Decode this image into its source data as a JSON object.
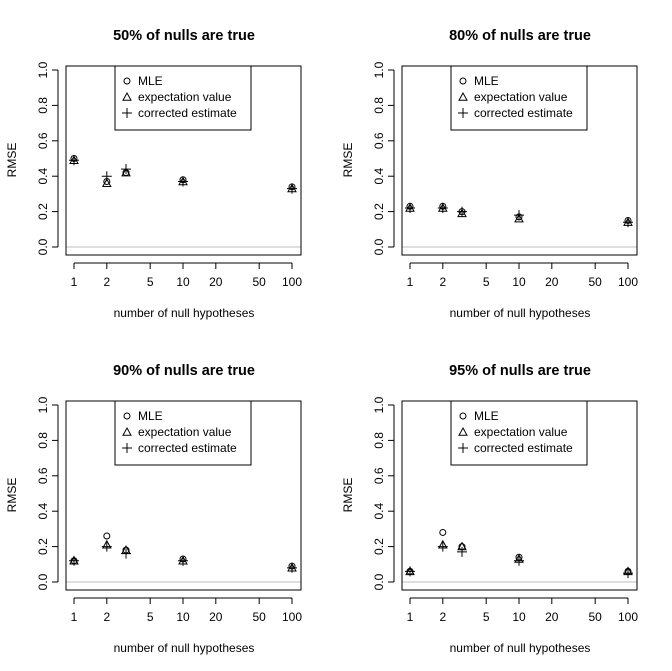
{
  "chart_data": [
    {
      "type": "scatter",
      "title": "50% of nulls are true",
      "xlabel": "number of null hypotheses",
      "ylabel": "RMSE",
      "xscale": "log",
      "xticks": [
        1,
        2,
        5,
        10,
        20,
        50,
        100
      ],
      "yticks": [
        0.0,
        0.2,
        0.4,
        0.6,
        0.8,
        1.0
      ],
      "ylim": [
        0,
        1
      ],
      "reference_line_y": 0,
      "legend": {
        "position": "top-center",
        "entries": [
          "MLE",
          "expectation value",
          "corrected estimate"
        ]
      },
      "series": [
        {
          "name": "MLE",
          "marker": "circle",
          "x": [
            1,
            2,
            3,
            10,
            100
          ],
          "y": [
            0.5,
            0.37,
            0.42,
            0.38,
            0.34
          ]
        },
        {
          "name": "expectation value",
          "marker": "triangle",
          "x": [
            1,
            2,
            3,
            10,
            100
          ],
          "y": [
            0.49,
            0.36,
            0.42,
            0.37,
            0.33
          ]
        },
        {
          "name": "corrected estimate",
          "marker": "plus",
          "x": [
            1,
            2,
            3,
            10,
            100
          ],
          "y": [
            0.49,
            0.4,
            0.44,
            0.37,
            0.33
          ]
        }
      ]
    },
    {
      "type": "scatter",
      "title": "80% of nulls are true",
      "xlabel": "number of null hypotheses",
      "ylabel": "RMSE",
      "xscale": "log",
      "xticks": [
        1,
        2,
        5,
        10,
        20,
        50,
        100
      ],
      "yticks": [
        0.0,
        0.2,
        0.4,
        0.6,
        0.8,
        1.0
      ],
      "ylim": [
        0,
        1
      ],
      "reference_line_y": 0,
      "legend": {
        "position": "top-center",
        "entries": [
          "MLE",
          "expectation value",
          "corrected estimate"
        ]
      },
      "series": [
        {
          "name": "MLE",
          "marker": "circle",
          "x": [
            1,
            2,
            3,
            10,
            100
          ],
          "y": [
            0.23,
            0.23,
            0.2,
            0.17,
            0.15
          ]
        },
        {
          "name": "expectation value",
          "marker": "triangle",
          "x": [
            1,
            2,
            3,
            10,
            100
          ],
          "y": [
            0.22,
            0.22,
            0.19,
            0.16,
            0.14
          ]
        },
        {
          "name": "corrected estimate",
          "marker": "plus",
          "x": [
            1,
            2,
            3,
            10,
            100
          ],
          "y": [
            0.22,
            0.22,
            0.2,
            0.18,
            0.14
          ]
        }
      ]
    },
    {
      "type": "scatter",
      "title": "90% of nulls are true",
      "xlabel": "number of null hypotheses",
      "ylabel": "RMSE",
      "xscale": "log",
      "xticks": [
        1,
        2,
        5,
        10,
        20,
        50,
        100
      ],
      "yticks": [
        0.0,
        0.2,
        0.4,
        0.6,
        0.8,
        1.0
      ],
      "ylim": [
        0,
        1
      ],
      "reference_line_y": 0,
      "legend": {
        "position": "top-center",
        "entries": [
          "MLE",
          "expectation value",
          "corrected estimate"
        ]
      },
      "series": [
        {
          "name": "MLE",
          "marker": "circle",
          "x": [
            1,
            2,
            3,
            10,
            100
          ],
          "y": [
            0.12,
            0.26,
            0.18,
            0.13,
            0.09
          ]
        },
        {
          "name": "expectation value",
          "marker": "triangle",
          "x": [
            1,
            2,
            3,
            10,
            100
          ],
          "y": [
            0.12,
            0.21,
            0.18,
            0.12,
            0.08
          ]
        },
        {
          "name": "corrected estimate",
          "marker": "plus",
          "x": [
            1,
            2,
            3,
            10,
            100
          ],
          "y": [
            0.12,
            0.2,
            0.16,
            0.12,
            0.08
          ]
        }
      ]
    },
    {
      "type": "scatter",
      "title": "95% of nulls are true",
      "xlabel": "number of null hypotheses",
      "ylabel": "RMSE",
      "xscale": "log",
      "xticks": [
        1,
        2,
        5,
        10,
        20,
        50,
        100
      ],
      "yticks": [
        0.0,
        0.2,
        0.4,
        0.6,
        0.8,
        1.0
      ],
      "ylim": [
        0,
        1
      ],
      "reference_line_y": 0,
      "legend": {
        "position": "top-center",
        "entries": [
          "MLE",
          "expectation value",
          "corrected estimate"
        ]
      },
      "series": [
        {
          "name": "MLE",
          "marker": "circle",
          "x": [
            1,
            2,
            3,
            10,
            100
          ],
          "y": [
            0.06,
            0.28,
            0.2,
            0.14,
            0.06
          ]
        },
        {
          "name": "expectation value",
          "marker": "triangle",
          "x": [
            1,
            2,
            3,
            10,
            100
          ],
          "y": [
            0.06,
            0.21,
            0.2,
            0.13,
            0.06
          ]
        },
        {
          "name": "corrected estimate",
          "marker": "plus",
          "x": [
            1,
            2,
            3,
            10,
            100
          ],
          "y": [
            0.06,
            0.2,
            0.17,
            0.12,
            0.05
          ]
        }
      ]
    }
  ]
}
